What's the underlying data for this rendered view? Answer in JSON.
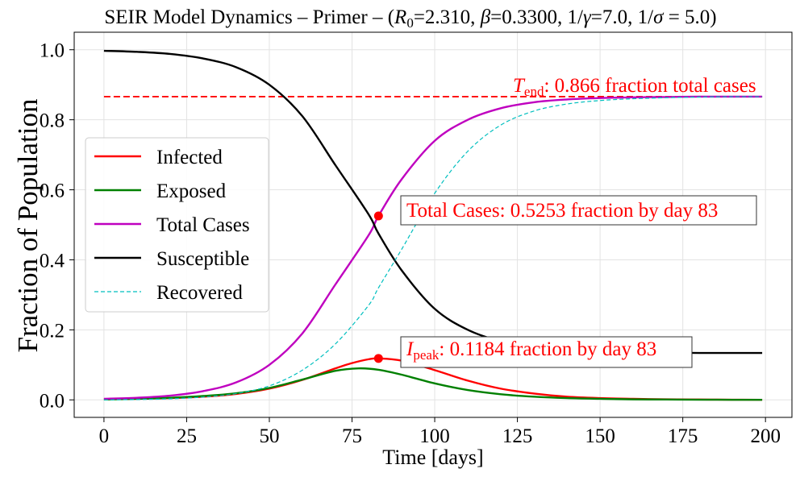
{
  "chart_data": {
    "type": "line",
    "title_parts": {
      "prefix": "SEIR Model Dynamics – Primer – (",
      "r0_symbol": "R",
      "r0_sub": "0",
      "r0_value": "=2.310, ",
      "beta_symbol": "β",
      "beta_value": "=0.3300, 1/",
      "gamma_symbol": "γ",
      "gamma_value": "=7.0, 1/",
      "sigma_symbol": "σ",
      "sigma_value": " = 5.0)"
    },
    "xlabel": "Time [days]",
    "ylabel": "Fraction of Population",
    "xlim": [
      -9,
      208
    ],
    "ylim": [
      -0.05,
      1.05
    ],
    "xticks": [
      0,
      25,
      50,
      75,
      100,
      125,
      150,
      175,
      200
    ],
    "yticks": [
      0.0,
      0.2,
      0.4,
      0.6,
      0.8,
      1.0
    ],
    "xtick_labels": [
      "0",
      "25",
      "50",
      "75",
      "100",
      "125",
      "150",
      "175",
      "200"
    ],
    "ytick_labels": [
      "0.0",
      "0.2",
      "0.4",
      "0.6",
      "0.8",
      "1.0"
    ],
    "grid": true,
    "legend_position": "center-left",
    "series": [
      {
        "name": "Infected",
        "color": "#ff0000",
        "style": "solid",
        "x": [
          0,
          10,
          20,
          30,
          40,
          50,
          60,
          70,
          75,
          80,
          83,
          90,
          100,
          110,
          120,
          130,
          140,
          150,
          160,
          170,
          180,
          190,
          199
        ],
        "y": [
          0.002,
          0.003,
          0.005,
          0.009,
          0.017,
          0.032,
          0.057,
          0.09,
          0.105,
          0.116,
          0.1184,
          0.112,
          0.085,
          0.055,
          0.032,
          0.018,
          0.009,
          0.005,
          0.003,
          0.0015,
          0.001,
          0.0005,
          0.0003
        ]
      },
      {
        "name": "Exposed",
        "color": "#008000",
        "style": "solid",
        "x": [
          0,
          10,
          20,
          30,
          40,
          50,
          60,
          70,
          77,
          83,
          90,
          100,
          110,
          120,
          130,
          140,
          150,
          160,
          170,
          180,
          190,
          199
        ],
        "y": [
          0.001,
          0.003,
          0.006,
          0.011,
          0.019,
          0.034,
          0.058,
          0.083,
          0.09,
          0.086,
          0.072,
          0.047,
          0.028,
          0.016,
          0.009,
          0.005,
          0.003,
          0.0015,
          0.001,
          0.0005,
          0.0003,
          0.0002
        ]
      },
      {
        "name": "Total Cases",
        "color": "#bf00bf",
        "style": "solid",
        "x": [
          0,
          10,
          20,
          30,
          40,
          50,
          60,
          70,
          80,
          83,
          90,
          100,
          110,
          120,
          130,
          140,
          150,
          160,
          170,
          180,
          190,
          199
        ],
        "y": [
          0.003,
          0.006,
          0.012,
          0.025,
          0.05,
          0.1,
          0.19,
          0.33,
          0.47,
          0.5253,
          0.63,
          0.74,
          0.8,
          0.833,
          0.85,
          0.858,
          0.862,
          0.864,
          0.865,
          0.866,
          0.866,
          0.866
        ]
      },
      {
        "name": "Susceptible",
        "color": "#000000",
        "style": "solid",
        "x": [
          0,
          10,
          20,
          30,
          40,
          50,
          60,
          70,
          80,
          83,
          90,
          100,
          110,
          120,
          130,
          140,
          150,
          160,
          170,
          180,
          190,
          199
        ],
        "y": [
          0.997,
          0.994,
          0.988,
          0.975,
          0.95,
          0.9,
          0.81,
          0.67,
          0.53,
          0.475,
          0.37,
          0.26,
          0.2,
          0.167,
          0.15,
          0.142,
          0.138,
          0.136,
          0.135,
          0.134,
          0.134,
          0.134
        ]
      },
      {
        "name": "Recovered",
        "color": "#00bfbf",
        "style": "dashed-thin",
        "x": [
          0,
          10,
          20,
          30,
          40,
          50,
          60,
          70,
          80,
          83,
          90,
          100,
          110,
          120,
          130,
          140,
          150,
          160,
          170,
          180,
          190,
          199
        ],
        "y": [
          0.0,
          0.001,
          0.003,
          0.008,
          0.018,
          0.04,
          0.085,
          0.16,
          0.27,
          0.32,
          0.43,
          0.59,
          0.71,
          0.785,
          0.825,
          0.845,
          0.855,
          0.86,
          0.863,
          0.865,
          0.866,
          0.866
        ]
      }
    ],
    "reference_line": {
      "y": 0.866,
      "x_range": [
        0,
        199
      ],
      "color": "#ff0000",
      "style": "dashed"
    },
    "markers": [
      {
        "x": 83,
        "y": 0.5253,
        "color": "#ff0000"
      },
      {
        "x": 83,
        "y": 0.1184,
        "color": "#ff0000"
      }
    ],
    "annotations": {
      "tend": {
        "symbol": "T",
        "sub": "end",
        "text": ": 0.866 fraction total cases",
        "color": "#ff0000"
      },
      "total_cases": {
        "text": "Total Cases: 0.5253 fraction by day 83",
        "color": "#ff0000"
      },
      "ipeak": {
        "symbol": "I",
        "sub": "peak",
        "text": ": 0.1184 fraction by day 83",
        "color": "#ff0000"
      }
    }
  }
}
